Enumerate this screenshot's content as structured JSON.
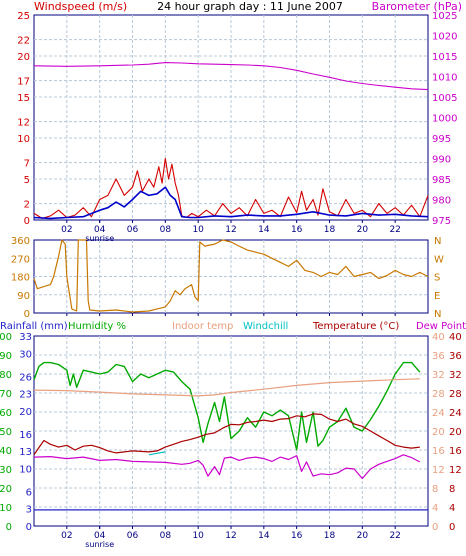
{
  "title": "24 hour graph day : 11 June 2007",
  "sunrise_label": "sunrise",
  "colors": {
    "windspeed": "#d40000",
    "gust": "#0000cc",
    "barometer": "#cc00cc",
    "direction": "#c87800",
    "rainfall": "#2222cc",
    "humidity": "#00aa00",
    "indoor": "#e8a080",
    "windchill": "#00c0c0",
    "temperature": "#aa0000",
    "dewpoint": "#cc00cc",
    "grid": "#b8c8d8",
    "axis": "#000080"
  },
  "hour_labels": [
    "02",
    "04",
    "06",
    "08",
    "10",
    "12",
    "14",
    "16",
    "18",
    "20",
    "22"
  ],
  "chart_data": [
    {
      "type": "line",
      "name": "wind-barometer",
      "labels": {
        "left": "Windspeed (m/s)",
        "right": "Barometer (hPa)"
      },
      "x_range": [
        0,
        24
      ],
      "left_axis": {
        "range": [
          0,
          25
        ],
        "ticks": [
          0,
          2,
          5,
          7,
          10,
          12,
          15,
          17,
          20,
          22,
          25
        ]
      },
      "right_axis": {
        "range": [
          975,
          1025
        ],
        "ticks": [
          975,
          980,
          985,
          990,
          995,
          1000,
          1005,
          1010,
          1015,
          1020,
          1025
        ]
      },
      "series": [
        {
          "key": "barometer",
          "axis": "right",
          "x": [
            0,
            2,
            4,
            6,
            7,
            8,
            9,
            10,
            11,
            12,
            13,
            14,
            15,
            16,
            17,
            18,
            19,
            20,
            21,
            22,
            23,
            24
          ],
          "y": [
            1012.6,
            1012.5,
            1012.6,
            1012.8,
            1013,
            1013.4,
            1013.3,
            1013.1,
            1013.0,
            1012.9,
            1012.8,
            1012.6,
            1012.2,
            1011.5,
            1010.6,
            1009.8,
            1008.9,
            1008.3,
            1007.8,
            1007.4,
            1007.0,
            1006.8
          ]
        },
        {
          "key": "windspeed",
          "axis": "left",
          "x": [
            0,
            0.5,
            1,
            1.5,
            2,
            2.5,
            3,
            3.5,
            4,
            4.5,
            5,
            5.5,
            6,
            6.3,
            6.6,
            7,
            7.3,
            7.6,
            7.8,
            8,
            8.2,
            8.4,
            8.6,
            8.8,
            9,
            9.3,
            9.6,
            10,
            10.5,
            11,
            11.5,
            12,
            12.5,
            13,
            13.5,
            14,
            14.5,
            15,
            15.5,
            16,
            16.3,
            16.6,
            17,
            17.3,
            17.6,
            18,
            18.5,
            19,
            19.5,
            20,
            20.5,
            21,
            21.5,
            22,
            22.5,
            23,
            23.5,
            24
          ],
          "y": [
            0.8,
            0.2,
            0.5,
            1.2,
            0.3,
            0.6,
            1.5,
            0.4,
            2.5,
            3,
            5,
            3,
            4,
            6,
            3.5,
            5,
            4,
            6.5,
            4.5,
            7.5,
            5,
            6.8,
            4.5,
            3,
            0.5,
            0.3,
            0.8,
            0.4,
            1.2,
            0.5,
            2,
            0.8,
            1.5,
            0.5,
            2.5,
            0.8,
            1.2,
            0.4,
            2.8,
            0.9,
            3.5,
            1.2,
            2.5,
            0.6,
            3.8,
            1,
            0.5,
            2.5,
            0.8,
            1.2,
            0.4,
            2,
            0.8,
            1.5,
            0.6,
            1.8,
            0.4,
            3
          ]
        },
        {
          "key": "gust",
          "axis": "left",
          "x": [
            0,
            1,
            2,
            3,
            4,
            4.5,
            5,
            5.5,
            6,
            6.5,
            7,
            7.5,
            8,
            8.3,
            8.6,
            9,
            9.5,
            10,
            11,
            12,
            13,
            14,
            15,
            16,
            17,
            18,
            19,
            20,
            21,
            22,
            23,
            24
          ],
          "y": [
            0.3,
            0.2,
            0.3,
            0.4,
            1.2,
            1.5,
            2.2,
            1.6,
            2.5,
            3.5,
            3,
            3.2,
            4,
            3,
            2.5,
            0.4,
            0.3,
            0.3,
            0.5,
            0.4,
            0.6,
            0.5,
            0.5,
            0.7,
            1,
            0.6,
            0.5,
            0.8,
            0.6,
            0.7,
            0.5,
            0.4
          ]
        }
      ]
    },
    {
      "type": "line",
      "name": "wind-direction",
      "x_range": [
        0,
        24
      ],
      "left_axis": {
        "range": [
          0,
          360
        ],
        "ticks": [
          0,
          90,
          180,
          270,
          360
        ]
      },
      "right_labels": [
        "N",
        "W",
        "S",
        "E",
        "N"
      ],
      "series": [
        {
          "key": "direction",
          "x": [
            0,
            0.2,
            0.6,
            1,
            1.2,
            1.5,
            1.7,
            1.9,
            2.0,
            2.3,
            2.6,
            2.7,
            3.2,
            3.3,
            3.4,
            4,
            5,
            6,
            7,
            7.5,
            8,
            8.3,
            8.6,
            8.9,
            9.2,
            9.6,
            9.8,
            10.0,
            10.1,
            10.4,
            11,
            11.5,
            12,
            12.5,
            13,
            13.5,
            14,
            14.5,
            15,
            15.5,
            16,
            16.5,
            17,
            17.5,
            18,
            18.5,
            19,
            19.5,
            20,
            20.5,
            21,
            21.5,
            22,
            22.5,
            23,
            23.5,
            24
          ],
          "y": [
            170,
            120,
            130,
            140,
            180,
            280,
            360,
            340,
            180,
            20,
            10,
            360,
            360,
            60,
            15,
            10,
            15,
            5,
            10,
            20,
            30,
            60,
            110,
            90,
            120,
            140,
            80,
            60,
            350,
            330,
            340,
            360,
            350,
            330,
            310,
            300,
            290,
            270,
            250,
            230,
            260,
            210,
            200,
            180,
            200,
            190,
            230,
            180,
            190,
            200,
            170,
            185,
            210,
            190,
            180,
            200,
            180
          ]
        }
      ]
    },
    {
      "type": "line",
      "name": "temp-humidity",
      "labels": {
        "rainfall": "Rainfall (mm)",
        "humidity": "Humidity %",
        "indoor": "Indoor temp",
        "windchill": "Windchill",
        "temperature": "Temperature (°C)",
        "dewpoint": "Dew Point"
      },
      "x_range": [
        0,
        24
      ],
      "rain_axis": {
        "range": [
          0,
          33
        ],
        "ticks": [
          0,
          3,
          6,
          10,
          13,
          16,
          20,
          23,
          26,
          30,
          33
        ]
      },
      "humidity_axis": {
        "range": [
          0,
          100
        ],
        "ticks": [
          0,
          10,
          20,
          30,
          40,
          50,
          60,
          70,
          80,
          90,
          100
        ]
      },
      "indoor_axis": {
        "range": [
          0,
          40
        ],
        "ticks": [
          0,
          4,
          8,
          12,
          16,
          20,
          24,
          28,
          32,
          36,
          40
        ]
      },
      "temp_axis": {
        "range": [
          0,
          40
        ],
        "ticks": [
          0,
          4,
          8,
          12,
          16,
          20,
          24,
          28,
          32,
          36,
          40
        ]
      },
      "series": [
        {
          "key": "rainfall",
          "axis": "rain",
          "x": [
            0,
            24
          ],
          "y": [
            2.8,
            2.8
          ]
        },
        {
          "key": "humidity",
          "axis": "humidity",
          "x": [
            0,
            0.3,
            0.6,
            1,
            1.5,
            2,
            2.2,
            2.4,
            2.6,
            3,
            3.5,
            4,
            4.5,
            5,
            5.5,
            6,
            6.5,
            7,
            7.5,
            8,
            8.5,
            9,
            9.5,
            10,
            10.3,
            10.6,
            11,
            11.3,
            11.6,
            12,
            12.5,
            13,
            13.5,
            14,
            14.5,
            15,
            15.5,
            16,
            16.3,
            16.6,
            17,
            17.3,
            17.6,
            18,
            18.5,
            19,
            19.5,
            20,
            20.5,
            21,
            21.5,
            22,
            22.5,
            23,
            23.5
          ],
          "y": [
            77,
            84,
            86,
            86,
            85,
            82,
            74,
            80,
            73,
            82,
            81,
            80,
            81,
            85,
            84,
            76,
            80,
            78,
            80,
            82,
            81,
            76,
            72,
            57,
            44,
            54,
            65,
            55,
            68,
            46,
            50,
            57,
            52,
            60,
            58,
            61,
            58,
            40,
            60,
            44,
            60,
            42,
            45,
            52,
            55,
            62,
            52,
            50,
            56,
            63,
            71,
            80,
            86,
            86,
            81
          ]
        },
        {
          "key": "indoor",
          "axis": "indoor",
          "x": [
            0,
            2,
            4,
            6,
            8,
            10,
            11,
            12,
            14,
            16,
            18,
            20,
            22,
            23.5
          ],
          "y": [
            28.6,
            28.5,
            28.2,
            27.8,
            27.6,
            27.4,
            27.6,
            28.1,
            28.8,
            29.6,
            30.2,
            30.5,
            30.8,
            31.0
          ]
        },
        {
          "key": "windchill",
          "axis": "temp",
          "x": [
            7,
            7.5,
            8
          ],
          "y": [
            15.0,
            15.3,
            15.6
          ]
        },
        {
          "key": "temperature",
          "axis": "temp",
          "x": [
            0,
            0.3,
            0.6,
            1,
            1.5,
            2,
            2.5,
            3,
            3.5,
            4,
            4.5,
            5,
            5.5,
            6,
            6.5,
            7,
            7.5,
            8,
            8.5,
            9,
            9.5,
            10,
            10.5,
            11,
            11.5,
            12,
            12.5,
            13,
            13.5,
            14,
            14.5,
            15,
            15.5,
            16,
            16.5,
            17,
            17.5,
            18,
            18.5,
            19,
            19.5,
            20,
            20.5,
            21,
            21.5,
            22,
            22.5,
            23,
            23.5
          ],
          "y": [
            15.0,
            16.5,
            18.0,
            17.2,
            16.6,
            17.0,
            16.0,
            16.8,
            17.0,
            16.5,
            15.8,
            15.4,
            15.6,
            15.8,
            15.7,
            15.6,
            15.8,
            16.6,
            17.2,
            17.8,
            18.2,
            18.7,
            19.3,
            19.6,
            20.6,
            21.4,
            21.3,
            21.8,
            22.0,
            22.3,
            22.0,
            22.5,
            22.6,
            23.2,
            23.0,
            23.6,
            23.5,
            22.5,
            22.0,
            22.5,
            21.5,
            21.0,
            20.0,
            19.0,
            18.0,
            17.0,
            16.6,
            16.4,
            16.6
          ]
        },
        {
          "key": "dewpoint",
          "axis": "temp",
          "x": [
            0,
            1,
            2,
            3,
            4,
            5,
            6,
            7,
            8,
            9,
            9.5,
            10,
            10.3,
            10.6,
            11,
            11.3,
            11.6,
            12,
            12.5,
            13,
            13.5,
            14,
            14.5,
            15,
            15.5,
            16,
            16.3,
            16.6,
            17,
            17.5,
            18,
            18.5,
            19,
            19.5,
            20,
            20.5,
            21,
            22,
            22.5,
            23,
            23.5
          ],
          "y": [
            14.5,
            14.6,
            14.2,
            14.5,
            13.8,
            14.0,
            13.6,
            13.5,
            13.4,
            13.0,
            13.2,
            13.8,
            12.8,
            10.5,
            12.5,
            10.8,
            14.3,
            14.5,
            13.8,
            14.3,
            14.5,
            14.2,
            13.6,
            14.5,
            14.0,
            14.8,
            11.5,
            13.5,
            10.5,
            11.0,
            10.8,
            11.2,
            12.2,
            12.0,
            10.0,
            12.0,
            13.0,
            14.2,
            15.0,
            14.4,
            13.5
          ]
        }
      ]
    }
  ]
}
